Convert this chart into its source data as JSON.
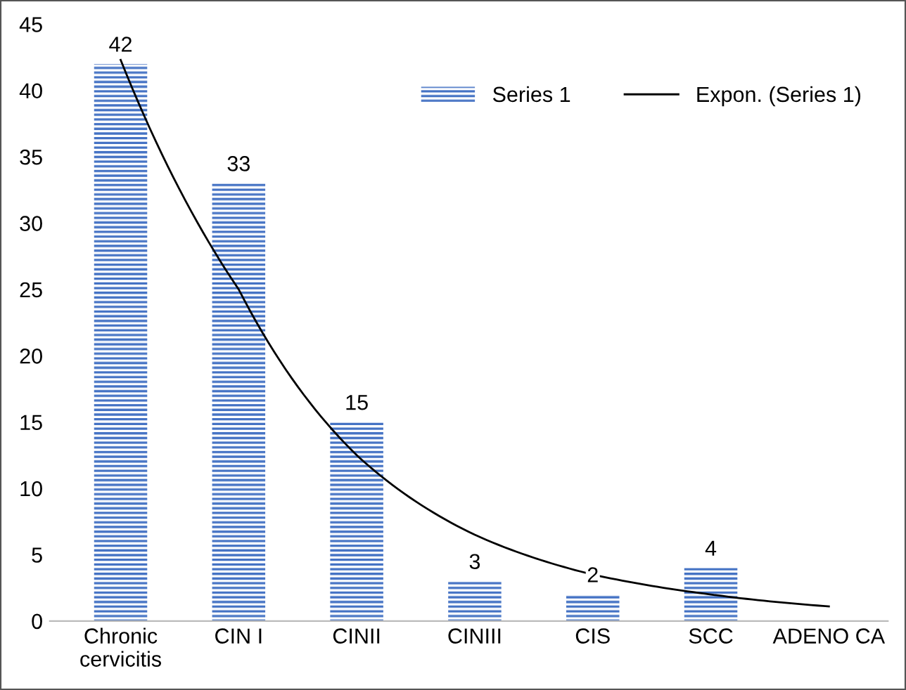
{
  "chart_data": {
    "type": "bar",
    "categories": [
      "Chronic\ncervicitis",
      "CIN I",
      "CINII",
      "CINIII",
      "CIS",
      "SCC",
      "ADENO CA"
    ],
    "series": [
      {
        "name": "Series 1",
        "color": "#4472c4",
        "values": [
          42,
          33,
          15,
          3,
          2,
          4,
          0
        ],
        "value_labels": [
          "42",
          "33",
          "15",
          "3",
          "2",
          "4",
          null
        ]
      },
      {
        "name": "Expon. (Series 1)",
        "type": "line",
        "color": "#000000",
        "values": [
          42.3,
          25,
          12.5,
          6.5,
          3.5,
          2,
          1.1
        ]
      }
    ],
    "ylim": [
      0,
      45
    ],
    "yticks": [
      0,
      5,
      10,
      15,
      20,
      25,
      30,
      35,
      40,
      45
    ],
    "legend": "top right",
    "grid": false,
    "line_style": "solid",
    "marker": "none"
  }
}
